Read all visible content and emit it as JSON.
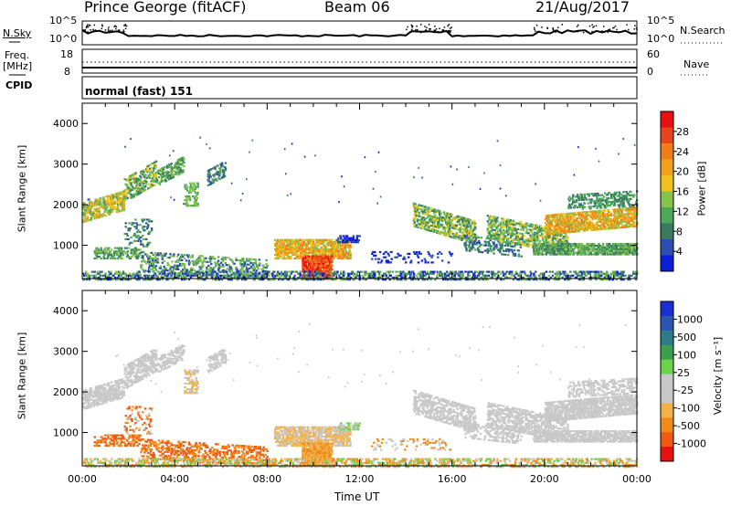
{
  "header": {
    "station": "Prince George (fitACF)",
    "beam": "Beam 06",
    "date": "21/Aug/2017"
  },
  "top_panels": {
    "nsky_label": "N.Sky",
    "nsky_ticks": [
      "10^5",
      "10^0"
    ],
    "nsearch_label": "N.Search",
    "nsearch_ticks": [
      "10^5",
      "10^0"
    ],
    "freq_label_1": "Freq.",
    "freq_label_2": "[MHz]",
    "freq_ticks": [
      "18",
      "8"
    ],
    "nave_label": "Nave",
    "nave_ticks": [
      "60",
      "0"
    ],
    "cpid_label": "CPID",
    "cpid_value": "normal (fast) 151"
  },
  "colors": {
    "power_scale": [
      "#0a1fd6",
      "#2d4eb0",
      "#3a7a60",
      "#4ea85a",
      "#86c34a",
      "#f2c21c",
      "#f2a11a",
      "#ef7d1a",
      "#e8441c",
      "#e81010"
    ],
    "velocity_scale": [
      "#e81010",
      "#ef5a14",
      "#f28a1a",
      "#f2b24a",
      "#c8c8c8",
      "#c8c8c8",
      "#6bd24a",
      "#3aa050",
      "#2d7c8a",
      "#2a56b0",
      "#1a2fd0"
    ]
  },
  "chart_data": [
    {
      "type": "heatmap",
      "panel": "power",
      "xlabel": "Time UT",
      "ylabel": "Slant Range [km]",
      "x_ticks": [
        "00:00",
        "04:00",
        "08:00",
        "12:00",
        "16:00",
        "20:00",
        "00:00"
      ],
      "y_ticks": [
        "1000",
        "2000",
        "3000",
        "4000"
      ],
      "ylim": [
        180,
        4500
      ],
      "colorbar_label": "Power [dB]",
      "colorbar_ticks": [
        "4",
        "8",
        "12",
        "16",
        "20",
        "24",
        "28"
      ],
      "colorbar_range": [
        0,
        30
      ]
    },
    {
      "type": "heatmap",
      "panel": "velocity",
      "xlabel": "Time UT",
      "ylabel": "Slant Range [km]",
      "x_ticks": [
        "00:00",
        "04:00",
        "08:00",
        "12:00",
        "16:00",
        "20:00",
        "00:00"
      ],
      "y_ticks": [
        "1000",
        "2000",
        "3000",
        "4000"
      ],
      "ylim": [
        180,
        4500
      ],
      "colorbar_label": "Velocity [m s⁻¹]",
      "colorbar_ticks": [
        "1000",
        "500",
        "100",
        "25",
        "-25",
        "-100",
        "-500",
        "-1000"
      ]
    }
  ]
}
